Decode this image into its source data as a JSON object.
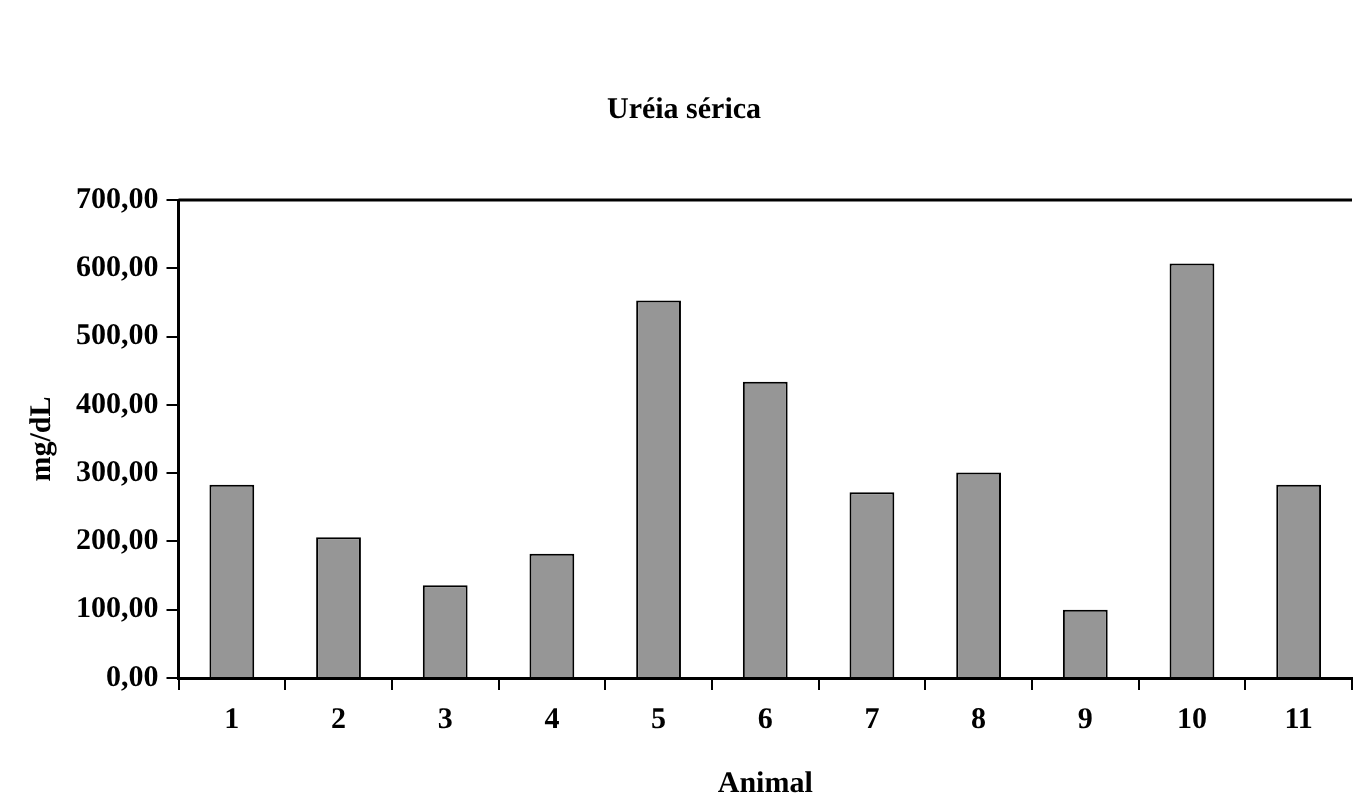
{
  "chart_data": {
    "type": "bar",
    "title": "Uréia sérica",
    "xlabel": "Animal",
    "ylabel": "mg/dL",
    "categories": [
      "1",
      "2",
      "3",
      "4",
      "5",
      "6",
      "7",
      "8",
      "9",
      "10",
      "11"
    ],
    "values": [
      283,
      206,
      136,
      182,
      553,
      434,
      272,
      301,
      100,
      607,
      283
    ],
    "color": "#969696",
    "ylim": [
      0,
      700
    ],
    "yticks": [
      {
        "value": 0,
        "label": "0,00"
      },
      {
        "value": 100,
        "label": "100,00"
      },
      {
        "value": 200,
        "label": "200,00"
      },
      {
        "value": 300,
        "label": "300,00"
      },
      {
        "value": 400,
        "label": "400,00"
      },
      {
        "value": 500,
        "label": "500,00"
      },
      {
        "value": 600,
        "label": "600,00"
      },
      {
        "value": 700,
        "label": "700,00"
      }
    ],
    "grid": false,
    "legend": false
  }
}
